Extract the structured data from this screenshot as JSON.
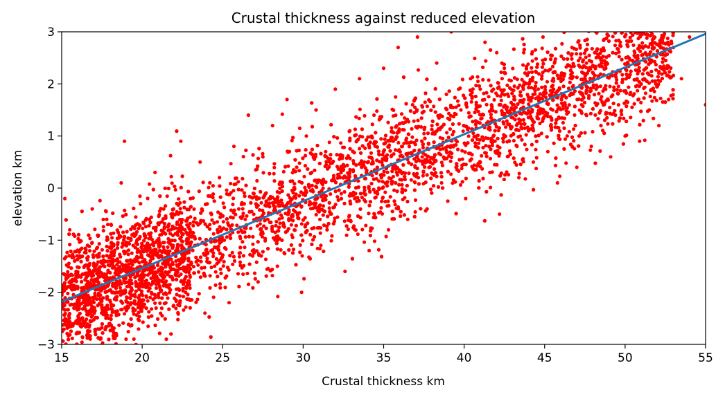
{
  "chart_data": {
    "type": "scatter",
    "title": "Crustal thickness against reduced elevation",
    "xlabel": "Crustal thickness km",
    "ylabel": "elevation km",
    "xlim": [
      15,
      55
    ],
    "ylim": [
      -3,
      3
    ],
    "xticks": [
      15,
      20,
      25,
      30,
      35,
      40,
      45,
      50,
      55
    ],
    "yticks": [
      -3,
      -2,
      -1,
      0,
      1,
      2,
      3
    ],
    "grid": false,
    "legend": "none",
    "colors": {
      "points": "#ff0000",
      "fit_line": "#1f77b4"
    },
    "point_cloud_description": "dense red scatter of many thousands of points, roughly elliptical band following a linear trend with vertical spread of about +/-1 km; visually sampled representative points listed in series.points",
    "series": [
      {
        "kind": "scatter",
        "points": [
          [
            15.2,
            -0.2
          ],
          [
            15.5,
            -0.8
          ],
          [
            15.8,
            -1.4
          ],
          [
            16.0,
            -1.9
          ],
          [
            16.3,
            -2.6
          ],
          [
            16.6,
            -1.1
          ],
          [
            16.9,
            -0.4
          ],
          [
            17.2,
            -1.6
          ],
          [
            17.5,
            -2.3
          ],
          [
            17.8,
            -0.6
          ],
          [
            18.1,
            -1.3
          ],
          [
            18.4,
            -2.0
          ],
          [
            18.7,
            0.1
          ],
          [
            18.9,
            0.9
          ],
          [
            19.0,
            -2.9
          ],
          [
            19.3,
            -1.0
          ],
          [
            19.6,
            -1.8
          ],
          [
            19.9,
            -0.3
          ],
          [
            20.2,
            -1.2
          ],
          [
            20.5,
            -2.1
          ],
          [
            20.8,
            0.3
          ],
          [
            21.1,
            -0.9
          ],
          [
            21.4,
            -1.7
          ],
          [
            21.5,
            -2.9
          ],
          [
            21.8,
            -0.5
          ],
          [
            22.1,
            -1.4
          ],
          [
            22.4,
            0.9
          ],
          [
            22.7,
            -2.0
          ],
          [
            23.0,
            -0.2
          ],
          [
            23.3,
            -1.1
          ],
          [
            23.6,
            0.5
          ],
          [
            23.9,
            -2.4
          ],
          [
            24.2,
            -0.7
          ],
          [
            24.5,
            -1.5
          ],
          [
            24.8,
            0.2
          ],
          [
            25.1,
            -1.0
          ],
          [
            25.4,
            -2.2
          ],
          [
            25.7,
            0.8
          ],
          [
            26.0,
            -0.4
          ],
          [
            26.3,
            -1.3
          ],
          [
            26.6,
            1.4
          ],
          [
            26.9,
            -0.1
          ],
          [
            27.2,
            -1.8
          ],
          [
            27.5,
            0.6
          ],
          [
            27.8,
            -0.6
          ],
          [
            28.1,
            1.2
          ],
          [
            28.4,
            -1.5
          ],
          [
            28.7,
            0.1
          ],
          [
            29.0,
            1.7
          ],
          [
            29.3,
            -0.9
          ],
          [
            29.6,
            0.4
          ],
          [
            29.9,
            -2.0
          ],
          [
            30.2,
            1.0
          ],
          [
            30.5,
            -0.3
          ],
          [
            30.8,
            1.5
          ],
          [
            31.1,
            -1.1
          ],
          [
            31.4,
            0.7
          ],
          [
            31.7,
            -0.5
          ],
          [
            32.0,
            1.9
          ],
          [
            32.3,
            0.2
          ],
          [
            32.6,
            -1.6
          ],
          [
            32.9,
            1.1
          ],
          [
            33.2,
            -0.2
          ],
          [
            33.5,
            2.1
          ],
          [
            33.8,
            0.5
          ],
          [
            34.1,
            -1.2
          ],
          [
            34.4,
            1.4
          ],
          [
            34.7,
            0.0
          ],
          [
            35.0,
            2.3
          ],
          [
            35.3,
            -0.8
          ],
          [
            35.6,
            0.9
          ],
          [
            35.9,
            2.7
          ],
          [
            36.2,
            0.3
          ],
          [
            36.5,
            -0.6
          ],
          [
            36.8,
            1.6
          ],
          [
            37.1,
            2.9
          ],
          [
            37.4,
            0.6
          ],
          [
            37.7,
            -0.4
          ],
          [
            38.0,
            1.2
          ],
          [
            38.3,
            2.4
          ],
          [
            38.6,
            0.1
          ],
          [
            38.9,
            1.8
          ],
          [
            39.2,
            3.0
          ],
          [
            39.5,
            0.4
          ],
          [
            39.8,
            1.5
          ],
          [
            40.1,
            -0.2
          ],
          [
            40.4,
            2.1
          ],
          [
            40.7,
            0.8
          ],
          [
            41.0,
            1.9
          ],
          [
            41.3,
            2.8
          ],
          [
            41.6,
            0.3
          ],
          [
            41.9,
            1.3
          ],
          [
            42.2,
            -0.5
          ],
          [
            42.5,
            2.3
          ],
          [
            42.8,
            0.9
          ],
          [
            43.1,
            1.7
          ],
          [
            43.4,
            0.2
          ],
          [
            43.7,
            2.6
          ],
          [
            44.0,
            1.1
          ],
          [
            44.3,
            0.5
          ],
          [
            44.6,
            1.9
          ],
          [
            44.9,
            2.9
          ],
          [
            45.2,
            0.7
          ],
          [
            45.5,
            1.5
          ],
          [
            45.8,
            0.1
          ],
          [
            46.1,
            2.2
          ],
          [
            46.4,
            1.0
          ],
          [
            46.7,
            2.7
          ],
          [
            47.0,
            0.4
          ],
          [
            47.3,
            1.6
          ],
          [
            47.6,
            2.4
          ],
          [
            47.9,
            0.8
          ],
          [
            48.2,
            1.9
          ],
          [
            48.5,
            1.2
          ],
          [
            48.8,
            2.3
          ],
          [
            49.1,
            0.6
          ],
          [
            49.4,
            1.4
          ],
          [
            49.7,
            2.8
          ],
          [
            50.0,
            1.0
          ],
          [
            50.3,
            1.8
          ],
          [
            50.6,
            2.6
          ],
          [
            50.9,
            0.9
          ],
          [
            51.2,
            2.1
          ],
          [
            51.5,
            1.5
          ],
          [
            51.8,
            2.9
          ],
          [
            52.1,
            1.2
          ],
          [
            52.4,
            2.3
          ],
          [
            52.7,
            1.7
          ],
          [
            53.0,
            2.7
          ],
          [
            53.5,
            2.1
          ],
          [
            54.0,
            2.9
          ],
          [
            55.0,
            1.6
          ]
        ]
      },
      {
        "kind": "line",
        "x": [
          15,
          55
        ],
        "y": [
          -2.18,
          2.96
        ]
      }
    ]
  }
}
